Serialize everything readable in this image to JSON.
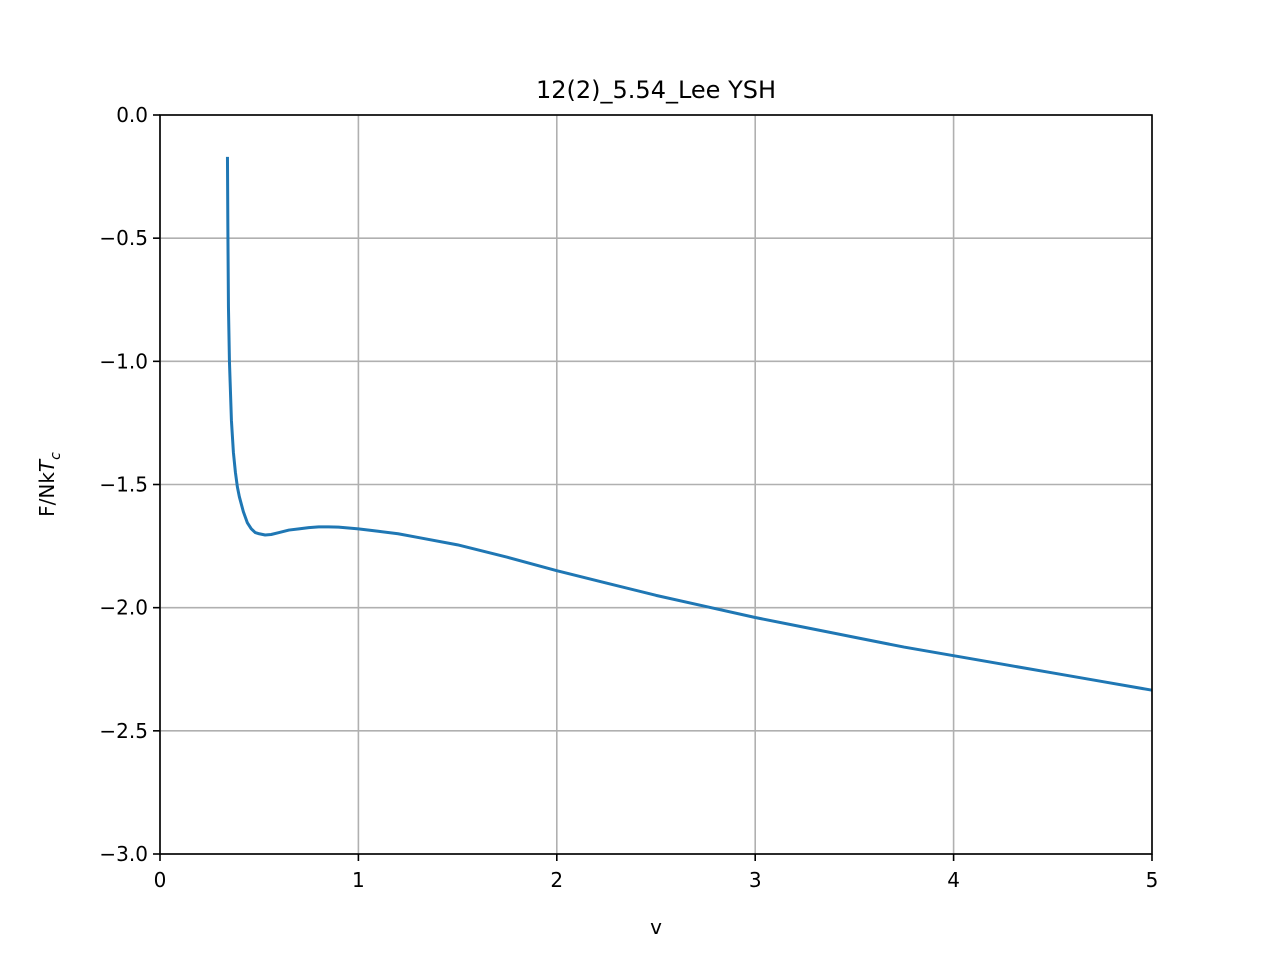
{
  "chart_data": {
    "type": "line",
    "title": "12(2)_5.54_Lee YSH",
    "xlabel": "v",
    "ylabel_main": "F/Nk",
    "ylabel_italic": "T",
    "ylabel_sub": "c",
    "xlim": [
      0,
      5
    ],
    "ylim": [
      -3.0,
      0.0
    ],
    "grid": true,
    "x_ticks": [
      0,
      1,
      2,
      3,
      4,
      5
    ],
    "x_tick_labels": [
      "0",
      "1",
      "2",
      "3",
      "4",
      "5"
    ],
    "y_ticks": [
      0.0,
      -0.5,
      -1.0,
      -1.5,
      -2.0,
      -2.5,
      -3.0
    ],
    "y_tick_labels": [
      "0.0",
      "−0.5",
      "−1.0",
      "−1.5",
      "−2.0",
      "−2.5",
      "−3.0"
    ],
    "series": [
      {
        "color": "#1f77b4",
        "x": [
          0.34,
          0.342,
          0.345,
          0.35,
          0.36,
          0.37,
          0.38,
          0.39,
          0.4,
          0.42,
          0.44,
          0.46,
          0.48,
          0.5,
          0.53,
          0.56,
          0.6,
          0.65,
          0.7,
          0.75,
          0.8,
          0.85,
          0.9,
          1.0,
          1.1,
          1.2,
          1.3,
          1.5,
          1.75,
          2.0,
          2.25,
          2.5,
          2.75,
          3.0,
          3.25,
          3.5,
          3.75,
          4.0,
          4.25,
          4.5,
          4.75,
          5.0
        ],
        "y": [
          -0.17,
          -0.45,
          -0.78,
          -1.0,
          -1.24,
          -1.37,
          -1.45,
          -1.51,
          -1.55,
          -1.61,
          -1.655,
          -1.68,
          -1.695,
          -1.7,
          -1.705,
          -1.703,
          -1.695,
          -1.685,
          -1.68,
          -1.675,
          -1.672,
          -1.672,
          -1.673,
          -1.68,
          -1.69,
          -1.7,
          -1.715,
          -1.745,
          -1.795,
          -1.85,
          -1.9,
          -1.95,
          -1.995,
          -2.04,
          -2.08,
          -2.12,
          -2.16,
          -2.195,
          -2.23,
          -2.265,
          -2.3,
          -2.335
        ]
      }
    ]
  }
}
